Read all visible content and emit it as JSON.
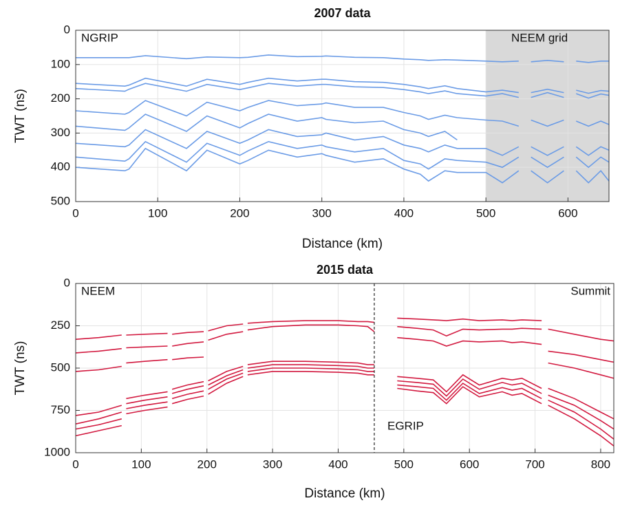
{
  "chart_data": [
    {
      "type": "line",
      "title": "2007 data",
      "xlabel": "Distance (km)",
      "ylabel": "TWT (ns)",
      "x": [
        0,
        60,
        65,
        85,
        135,
        160,
        200,
        210,
        235,
        270,
        300,
        305,
        340,
        375,
        400,
        420,
        430,
        450,
        465,
        500,
        520,
        540,
        547,
        555,
        575,
        595,
        602,
        610,
        625,
        640,
        650
      ],
      "series": [
        {
          "color": "#6a9be6",
          "values": [
            80,
            80,
            80,
            74,
            83,
            78,
            80,
            79,
            72,
            77,
            76,
            75,
            79,
            80,
            84,
            86,
            88,
            86,
            87,
            90,
            92,
            90,
            null,
            92,
            88,
            92,
            null,
            90,
            94,
            90,
            90
          ]
        },
        {
          "color": "#6a9be6",
          "values": [
            155,
            163,
            160,
            140,
            163,
            143,
            158,
            152,
            140,
            148,
            143,
            143,
            150,
            152,
            158,
            165,
            170,
            162,
            170,
            180,
            175,
            182,
            null,
            182,
            172,
            182,
            null,
            175,
            184,
            176,
            178
          ]
        },
        {
          "color": "#6a9be6",
          "values": [
            170,
            178,
            172,
            155,
            178,
            158,
            173,
            168,
            155,
            163,
            158,
            158,
            165,
            167,
            173,
            180,
            185,
            177,
            185,
            192,
            185,
            196,
            null,
            196,
            182,
            196,
            null,
            185,
            198,
            186,
            190
          ]
        },
        {
          "color": "#6a9be6",
          "values": [
            235,
            245,
            240,
            205,
            250,
            210,
            235,
            225,
            205,
            220,
            215,
            212,
            225,
            225,
            240,
            250,
            260,
            248,
            255,
            262,
            265,
            280,
            null,
            262,
            280,
            262,
            null,
            265,
            280,
            265,
            275
          ]
        },
        {
          "color": "#6a9be6",
          "values": [
            280,
            292,
            285,
            245,
            295,
            250,
            285,
            272,
            245,
            265,
            255,
            260,
            270,
            265,
            290,
            300,
            310,
            295,
            320,
            null,
            null,
            null,
            null,
            null,
            null,
            null,
            null,
            null,
            null,
            null,
            null
          ]
        },
        {
          "color": "#6a9be6",
          "values": [
            330,
            340,
            335,
            290,
            345,
            295,
            330,
            320,
            290,
            310,
            305,
            300,
            320,
            310,
            335,
            345,
            355,
            335,
            345,
            345,
            365,
            340,
            null,
            340,
            365,
            340,
            null,
            340,
            365,
            340,
            350
          ]
        },
        {
          "color": "#6a9be6",
          "values": [
            370,
            382,
            375,
            325,
            385,
            330,
            365,
            352,
            325,
            345,
            335,
            340,
            355,
            345,
            380,
            390,
            405,
            375,
            380,
            385,
            400,
            370,
            null,
            370,
            400,
            370,
            null,
            370,
            400,
            370,
            385
          ]
        },
        {
          "color": "#6a9be6",
          "values": [
            400,
            410,
            405,
            345,
            410,
            350,
            390,
            380,
            350,
            370,
            360,
            365,
            385,
            375,
            405,
            420,
            440,
            410,
            415,
            415,
            445,
            410,
            null,
            410,
            445,
            410,
            null,
            410,
            445,
            410,
            440
          ]
        }
      ],
      "xlim": [
        0,
        650
      ],
      "ylim": [
        0,
        500
      ],
      "xticks": [
        0,
        100,
        200,
        300,
        400,
        500,
        600
      ],
      "yticks": [
        0,
        100,
        200,
        300,
        400,
        500
      ],
      "y_reversed": true,
      "grid": true,
      "shade": [
        500,
        650
      ],
      "shade_color": "#d9d9d9",
      "annotations": [
        "NGRIP",
        "NEEM grid"
      ]
    },
    {
      "type": "line",
      "title": "2015 data",
      "xlabel": "Distance (km)",
      "ylabel": "TWT (ns)",
      "x": [
        0,
        35,
        70,
        73,
        77,
        105,
        140,
        143,
        147,
        170,
        195,
        198,
        202,
        230,
        255,
        258,
        262,
        300,
        350,
        400,
        430,
        445,
        455,
        470,
        490,
        520,
        545,
        565,
        590,
        615,
        650,
        665,
        680,
        710,
        715,
        720,
        760,
        800,
        820
      ],
      "series": [
        {
          "color": "#d2193f",
          "values": [
            330,
            320,
            305,
            null,
            305,
            300,
            295,
            null,
            300,
            290,
            285,
            null,
            280,
            250,
            240,
            null,
            235,
            225,
            220,
            220,
            225,
            225,
            230,
            null,
            205,
            210,
            215,
            220,
            210,
            220,
            215,
            220,
            215,
            220,
            null,
            270,
            300,
            330,
            340
          ]
        },
        {
          "color": "#d2193f",
          "values": [
            410,
            400,
            385,
            null,
            380,
            375,
            370,
            null,
            370,
            355,
            345,
            null,
            335,
            300,
            285,
            null,
            275,
            255,
            245,
            245,
            250,
            255,
            285,
            null,
            255,
            265,
            275,
            310,
            270,
            275,
            270,
            270,
            265,
            270,
            null,
            400,
            420,
            450,
            465
          ]
        },
        {
          "color": "#d2193f",
          "values": [
            520,
            510,
            490,
            null,
            470,
            460,
            450,
            null,
            450,
            440,
            435,
            null,
            null,
            null,
            null,
            null,
            null,
            null,
            null,
            null,
            null,
            null,
            null,
            null,
            320,
            330,
            340,
            370,
            340,
            345,
            340,
            350,
            345,
            360,
            null,
            470,
            500,
            540,
            560
          ]
        },
        {
          "color": "#d2193f",
          "values": [
            780,
            760,
            720,
            null,
            680,
            660,
            640,
            null,
            625,
            600,
            580,
            null,
            575,
            520,
            490,
            null,
            480,
            460,
            460,
            465,
            470,
            480,
            480,
            null,
            550,
            560,
            570,
            640,
            540,
            600,
            560,
            570,
            560,
            620,
            null,
            620,
            680,
            760,
            800
          ]
        },
        {
          "color": "#d2193f",
          "values": [
            830,
            800,
            760,
            null,
            710,
            690,
            670,
            null,
            650,
            625,
            605,
            null,
            600,
            545,
            510,
            null,
            500,
            480,
            480,
            485,
            490,
            500,
            500,
            null,
            575,
            585,
            595,
            665,
            565,
            625,
            585,
            600,
            590,
            650,
            null,
            660,
            720,
            810,
            860
          ]
        },
        {
          "color": "#d2193f",
          "values": [
            860,
            835,
            800,
            null,
            740,
            720,
            700,
            null,
            680,
            655,
            635,
            null,
            625,
            565,
            530,
            null,
            520,
            500,
            500,
            505,
            510,
            520,
            520,
            null,
            600,
            610,
            620,
            690,
            590,
            650,
            615,
            630,
            620,
            680,
            null,
            690,
            760,
            860,
            920
          ]
        },
        {
          "color": "#d2193f",
          "values": [
            900,
            870,
            840,
            null,
            770,
            750,
            730,
            null,
            710,
            685,
            665,
            null,
            655,
            590,
            550,
            null,
            540,
            520,
            520,
            525,
            530,
            540,
            540,
            null,
            620,
            635,
            645,
            710,
            610,
            670,
            640,
            660,
            650,
            710,
            null,
            720,
            800,
            900,
            960
          ]
        }
      ],
      "xlim": [
        0,
        820
      ],
      "ylim": [
        0,
        1000
      ],
      "xticks": [
        0,
        100,
        200,
        300,
        400,
        500,
        600,
        700,
        800
      ],
      "yticks": [
        0,
        250,
        500,
        750,
        1000
      ],
      "y_reversed": true,
      "grid": true,
      "vline": 455,
      "annotations": [
        "NEEM",
        "Summit",
        "EGRIP"
      ]
    }
  ]
}
